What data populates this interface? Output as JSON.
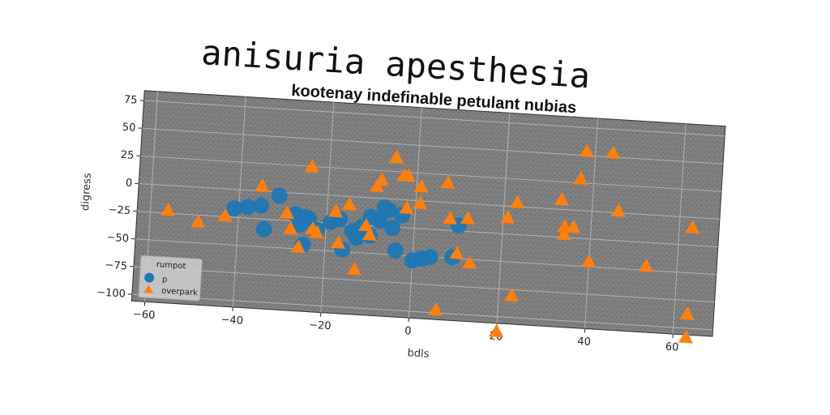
{
  "page": {
    "title": "anisuria apesthesia"
  },
  "chart_data": {
    "type": "scatter",
    "title": "kootenay indefinable petulant nubias",
    "xlabel": "bdls",
    "ylabel": "digress",
    "xlim": [
      -63,
      69
    ],
    "ylim": [
      -106,
      84
    ],
    "xticks": [
      -60,
      -40,
      -20,
      0,
      20,
      40,
      60
    ],
    "yticks": [
      75,
      50,
      25,
      0,
      -25,
      -50,
      -75,
      -100
    ],
    "grid": true,
    "legend": {
      "title": "rumpot",
      "placement": "lower-left"
    },
    "colors": {
      "p": "#1f77b4",
      "overpark": "#ff7f0e",
      "axes_bg": "#808080",
      "grid": "#b0b0b0"
    },
    "series": [
      {
        "name": "p",
        "marker": "circle",
        "points": [
          [
            -41,
            -17
          ],
          [
            -38,
            -15
          ],
          [
            -35,
            -13
          ],
          [
            -31,
            -3
          ],
          [
            -34,
            -34
          ],
          [
            -27,
            -19
          ],
          [
            -25,
            -21
          ],
          [
            -24,
            -22
          ],
          [
            -22,
            -32
          ],
          [
            -25,
            -46
          ],
          [
            -19,
            -24
          ],
          [
            -17,
            -21
          ],
          [
            -14,
            -31
          ],
          [
            -13,
            -37
          ],
          [
            -10,
            -34
          ],
          [
            -10,
            -17
          ],
          [
            -8,
            -20
          ],
          [
            -7,
            -8
          ],
          [
            -6,
            -10
          ],
          [
            -5,
            -26
          ],
          [
            -4,
            -46
          ],
          [
            0,
            -54
          ],
          [
            2,
            -52
          ],
          [
            4,
            -50
          ],
          [
            9,
            -49
          ],
          [
            10,
            -20
          ],
          [
            -16,
            -48
          ],
          [
            -12,
            -27
          ],
          [
            -26,
            -28
          ],
          [
            -3,
            -14
          ]
        ]
      },
      {
        "name": "overpark",
        "marker": "triangle",
        "points": [
          [
            -56,
            -22
          ],
          [
            -49,
            -31
          ],
          [
            -43,
            -24
          ],
          [
            -35,
            5
          ],
          [
            -29,
            -18
          ],
          [
            -28,
            -32
          ],
          [
            -26,
            -48
          ],
          [
            -24,
            25
          ],
          [
            -23,
            -31
          ],
          [
            -22,
            -34
          ],
          [
            -18,
            -14
          ],
          [
            -17,
            -42
          ],
          [
            -15,
            -7
          ],
          [
            -13,
            -65
          ],
          [
            -11,
            -25
          ],
          [
            -10,
            -33
          ],
          [
            -9,
            11
          ],
          [
            -8,
            17
          ],
          [
            -5,
            38
          ],
          [
            -3,
            22
          ],
          [
            -2,
            22
          ],
          [
            1,
            13
          ],
          [
            1,
            -2
          ],
          [
            -2,
            -7
          ],
          [
            6,
            -97
          ],
          [
            7,
            18
          ],
          [
            8,
            -14
          ],
          [
            10,
            -45
          ],
          [
            12,
            -13
          ],
          [
            13,
            -53
          ],
          [
            20,
            -113
          ],
          [
            21,
            -10
          ],
          [
            23,
            4
          ],
          [
            23,
            -80
          ],
          [
            33,
            9
          ],
          [
            34,
            -22
          ],
          [
            34,
            -15
          ],
          [
            36,
            -15
          ],
          [
            37,
            29
          ],
          [
            38,
            54
          ],
          [
            40,
            -45
          ],
          [
            44,
            54
          ],
          [
            46,
            2
          ],
          [
            53,
            -46
          ],
          [
            63,
            -9
          ],
          [
            63,
            -87
          ],
          [
            63,
            -108
          ]
        ]
      }
    ]
  }
}
